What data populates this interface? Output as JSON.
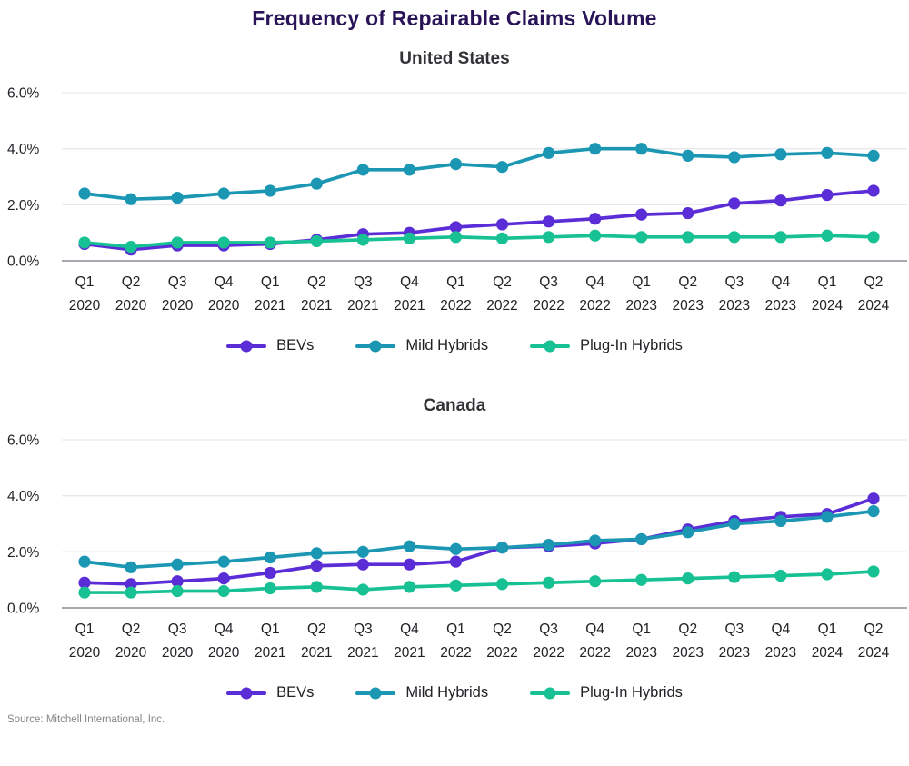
{
  "title": "Frequency of Repairable Claims Volume",
  "source": "Source: Mitchell International, Inc.",
  "colors": {
    "bevs": "#5a2dd6",
    "mild_hybrids": "#1b97b3",
    "plug_in_hybrids": "#18c193",
    "title_text": "#2a1458",
    "subtitle_text": "#323237",
    "axis_text": "#212126",
    "gridline": "#e9e9ed",
    "zero_line": "#a8a8ae",
    "legend_text": "#212126",
    "source_text": "#85858a",
    "background": "#ffffff"
  },
  "legend": {
    "items": [
      {
        "label": "BEVs",
        "color_key": "bevs"
      },
      {
        "label": "Mild Hybrids",
        "color_key": "mild_hybrids"
      },
      {
        "label": "Plug-In Hybrids",
        "color_key": "plug_in_hybrids"
      }
    ]
  },
  "chart_data": [
    {
      "type": "line",
      "title": "United States",
      "categories": [
        "Q1 2020",
        "Q2 2020",
        "Q3 2020",
        "Q4 2020",
        "Q1 2021",
        "Q2 2021",
        "Q3 2021",
        "Q4 2021",
        "Q1 2022",
        "Q2 2022",
        "Q3 2022",
        "Q4 2022",
        "Q1 2023",
        "Q2 2023",
        "Q3 2023",
        "Q4 2023",
        "Q1 2024",
        "Q2 2024"
      ],
      "xlabel": "",
      "ylabel": "",
      "ylim": [
        0,
        6
      ],
      "yticks": [
        {
          "value": 0,
          "label": "0.0%"
        },
        {
          "value": 2,
          "label": "2.0%"
        },
        {
          "value": 4,
          "label": "4.0%"
        },
        {
          "value": 6,
          "label": "6.0%"
        }
      ],
      "grid": true,
      "legend_position": "bottom",
      "series": [
        {
          "name": "BEVs",
          "color_key": "bevs",
          "values": [
            0.6,
            0.4,
            0.55,
            0.55,
            0.6,
            0.75,
            0.95,
            1.0,
            1.2,
            1.3,
            1.4,
            1.5,
            1.65,
            1.7,
            2.05,
            2.15,
            2.35,
            2.5
          ]
        },
        {
          "name": "Mild Hybrids",
          "color_key": "mild_hybrids",
          "values": [
            2.4,
            2.2,
            2.25,
            2.4,
            2.5,
            2.75,
            3.25,
            3.25,
            3.45,
            3.35,
            3.85,
            4.0,
            4.0,
            3.75,
            3.7,
            3.8,
            3.85,
            3.75
          ]
        },
        {
          "name": "Plug-In Hybrids",
          "color_key": "plug_in_hybrids",
          "values": [
            0.65,
            0.5,
            0.65,
            0.65,
            0.65,
            0.7,
            0.75,
            0.8,
            0.85,
            0.8,
            0.85,
            0.9,
            0.85,
            0.85,
            0.85,
            0.85,
            0.9,
            0.85
          ]
        }
      ]
    },
    {
      "type": "line",
      "title": "Canada",
      "categories": [
        "Q1 2020",
        "Q2 2020",
        "Q3 2020",
        "Q4 2020",
        "Q1 2021",
        "Q2 2021",
        "Q3 2021",
        "Q4 2021",
        "Q1 2022",
        "Q2 2022",
        "Q3 2022",
        "Q4 2022",
        "Q1 2023",
        "Q2 2023",
        "Q3 2023",
        "Q4 2023",
        "Q1 2024",
        "Q2 2024"
      ],
      "xlabel": "",
      "ylabel": "",
      "ylim": [
        0,
        6
      ],
      "yticks": [
        {
          "value": 0,
          "label": "0.0%"
        },
        {
          "value": 2,
          "label": "2.0%"
        },
        {
          "value": 4,
          "label": "4.0%"
        },
        {
          "value": 6,
          "label": "6.0%"
        }
      ],
      "grid": true,
      "legend_position": "bottom",
      "series": [
        {
          "name": "BEVs",
          "color_key": "bevs",
          "values": [
            0.9,
            0.85,
            0.95,
            1.05,
            1.25,
            1.5,
            1.55,
            1.55,
            1.65,
            2.15,
            2.2,
            2.3,
            2.45,
            2.8,
            3.1,
            3.25,
            3.35,
            3.9
          ]
        },
        {
          "name": "Mild Hybrids",
          "color_key": "mild_hybrids",
          "values": [
            1.65,
            1.45,
            1.55,
            1.65,
            1.8,
            1.95,
            2.0,
            2.2,
            2.1,
            2.15,
            2.25,
            2.4,
            2.45,
            2.7,
            3.0,
            3.1,
            3.25,
            3.45
          ]
        },
        {
          "name": "Plug-In Hybrids",
          "color_key": "plug_in_hybrids",
          "values": [
            0.55,
            0.55,
            0.6,
            0.6,
            0.7,
            0.75,
            0.65,
            0.75,
            0.8,
            0.85,
            0.9,
            0.95,
            1.0,
            1.05,
            1.1,
            1.15,
            1.2,
            1.3
          ]
        }
      ]
    }
  ]
}
